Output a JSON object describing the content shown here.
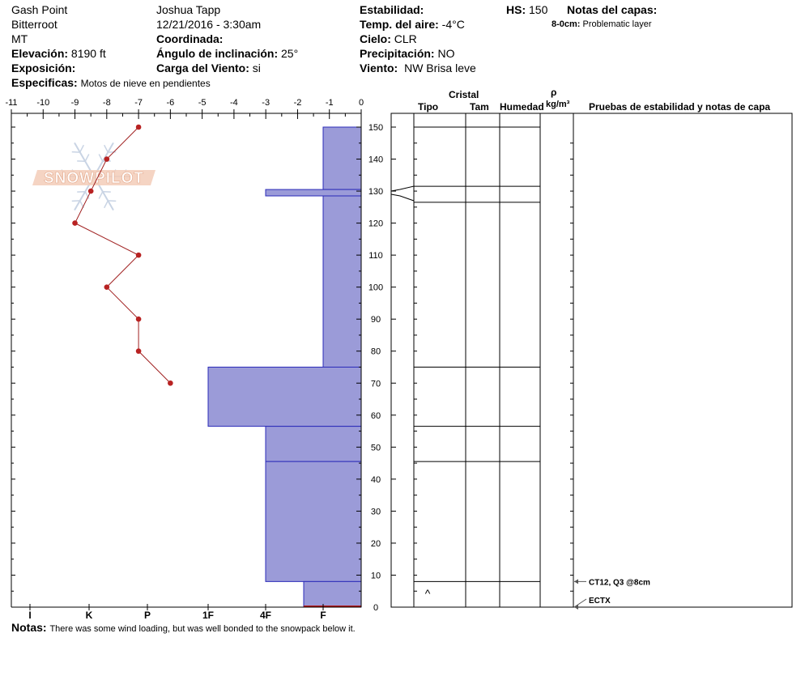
{
  "header": {
    "location": "Gash Point",
    "range": "Bitterroot",
    "state": "MT",
    "elevation_label": "Elevación:",
    "elevation_value": "8190 ft",
    "aspect_label": "Exposición:",
    "aspect_value": "",
    "specifics_label": "Especificas:",
    "specifics_value": "Motos de nieve en pendientes",
    "observer": "Joshua Tapp",
    "datetime": "12/21/2016 - 3:30am",
    "coord_label": "Coordinada:",
    "coord_value": "",
    "slope_label": "Ángulo de inclinación:",
    "slope_value": "25°",
    "wind_load_label": "Carga del Viento:",
    "wind_load_value": "si",
    "stability_label": "Estabilidad:",
    "stability_value": "",
    "air_temp_label": "Temp. del aire:",
    "air_temp_value": "-4°C",
    "sky_label": "Cielo:",
    "sky_value": "CLR",
    "precip_label": "Precipitación:",
    "precip_value": "NO",
    "wind_label": "Viento:",
    "wind_value": "NW Brisa leve",
    "hs_label": "HS:",
    "hs_value": "150",
    "layer_notes_label": "Notas del capas:",
    "layer_note_range": "8-0cm:",
    "layer_note_text": "Problematic layer"
  },
  "columns": {
    "crystal": "Cristal",
    "type": "Tipo",
    "size": "Tam",
    "moisture": "Humedad",
    "rho": "ρ",
    "density_unit": "kg/m³",
    "tests": "Pruebas de estabilidad y notas de capa"
  },
  "footer": {
    "notes_label": "Notas:",
    "notes_text": "There was some wind loading, but was well bonded to the snowpack below it."
  },
  "logo": {
    "text": "SNOWPILOT"
  },
  "chart_data": {
    "type": "snow-profile",
    "temperature_axis": {
      "ticks": [
        -11,
        -10,
        -9,
        -8,
        -7,
        -6,
        -5,
        -4,
        -3,
        -2,
        -1,
        0
      ],
      "range": [
        -11,
        0
      ]
    },
    "height_axis": {
      "ticks": [
        0,
        10,
        20,
        30,
        40,
        50,
        60,
        70,
        80,
        90,
        100,
        110,
        120,
        130,
        140,
        150
      ],
      "range": [
        0,
        150
      ],
      "unit": "cm"
    },
    "hardness_axis": {
      "labels": [
        "I",
        "K",
        "P",
        "1F",
        "4F",
        "F"
      ]
    },
    "temperature_profile": [
      {
        "height": 150,
        "temp": -7
      },
      {
        "height": 140,
        "temp": -8
      },
      {
        "height": 130,
        "temp": -8.5
      },
      {
        "height": 120,
        "temp": -9
      },
      {
        "height": 110,
        "temp": -7
      },
      {
        "height": 100,
        "temp": -8
      },
      {
        "height": 90,
        "temp": -7
      },
      {
        "height": 80,
        "temp": -7
      },
      {
        "height": 70,
        "temp": -6
      }
    ],
    "hardness_layers": [
      {
        "top": 150,
        "bottom": 130.5,
        "hardness": "F"
      },
      {
        "top": 130.5,
        "bottom": 128.5,
        "hardness": "4F"
      },
      {
        "top": 128.5,
        "bottom": 75,
        "hardness": "F"
      },
      {
        "top": 75,
        "bottom": 56.5,
        "hardness": "1F"
      },
      {
        "top": 56.5,
        "bottom": 45.5,
        "hardness": "4F"
      },
      {
        "top": 45.5,
        "bottom": 8,
        "hardness": "4F"
      },
      {
        "top": 8,
        "bottom": 0,
        "hardness": "4F-F"
      }
    ],
    "layer_boundaries": [
      150,
      131.5,
      126.5,
      75,
      56.5,
      45.5,
      8
    ],
    "crystal_types": [
      {
        "height": 4,
        "symbol": "^"
      }
    ],
    "stability_tests": [
      {
        "height": 8,
        "label": "CT12, Q3 @8cm"
      },
      {
        "height": 0,
        "label": "ECTX"
      }
    ],
    "colors": {
      "layer_fill": "#9b9bd8",
      "layer_stroke": "#2b2bb8",
      "temp_line": "#a02020",
      "temp_point": "#b82222"
    }
  }
}
